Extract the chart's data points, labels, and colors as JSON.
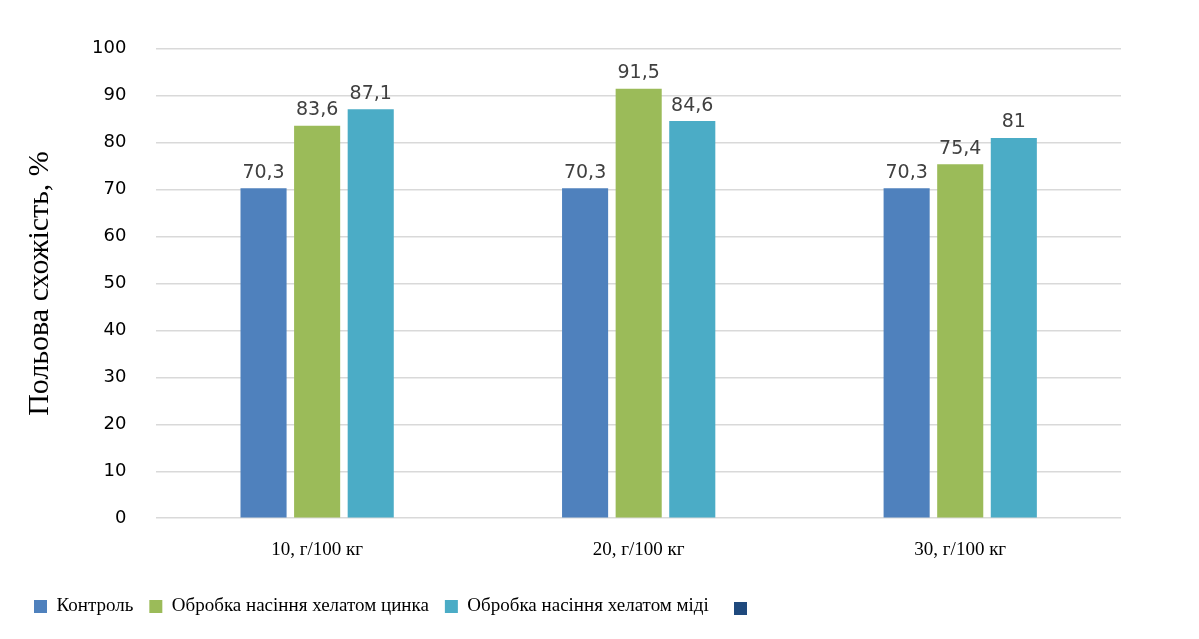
{
  "chart_data": {
    "type": "bar",
    "ylabel": "Польова схожість, %",
    "categories": [
      "10, г/100 кг",
      "20, г/100 кг",
      "30, г/100 кг"
    ],
    "series": [
      {
        "name": "Контроль",
        "color": "#4f81bd",
        "values": [
          70.3,
          70.3,
          70.3
        ],
        "value_labels": [
          "70,3",
          "70,3",
          "70,3"
        ]
      },
      {
        "name": "Обробка насіння хелатом цинка",
        "color": "#9bbb59",
        "values": [
          83.6,
          91.5,
          75.4
        ],
        "value_labels": [
          "83,6",
          "91,5",
          "75,4"
        ]
      },
      {
        "name": "Обробка насіння хелатом міді",
        "color": "#4bacc6",
        "values": [
          87.1,
          84.6,
          81
        ],
        "value_labels": [
          "87,1",
          "84,6",
          "81"
        ]
      }
    ],
    "ylim": [
      0,
      100
    ],
    "yticks": [
      0,
      10,
      20,
      30,
      40,
      50,
      60,
      70,
      80,
      90,
      100
    ],
    "grid": "y",
    "legend": "bottom"
  }
}
